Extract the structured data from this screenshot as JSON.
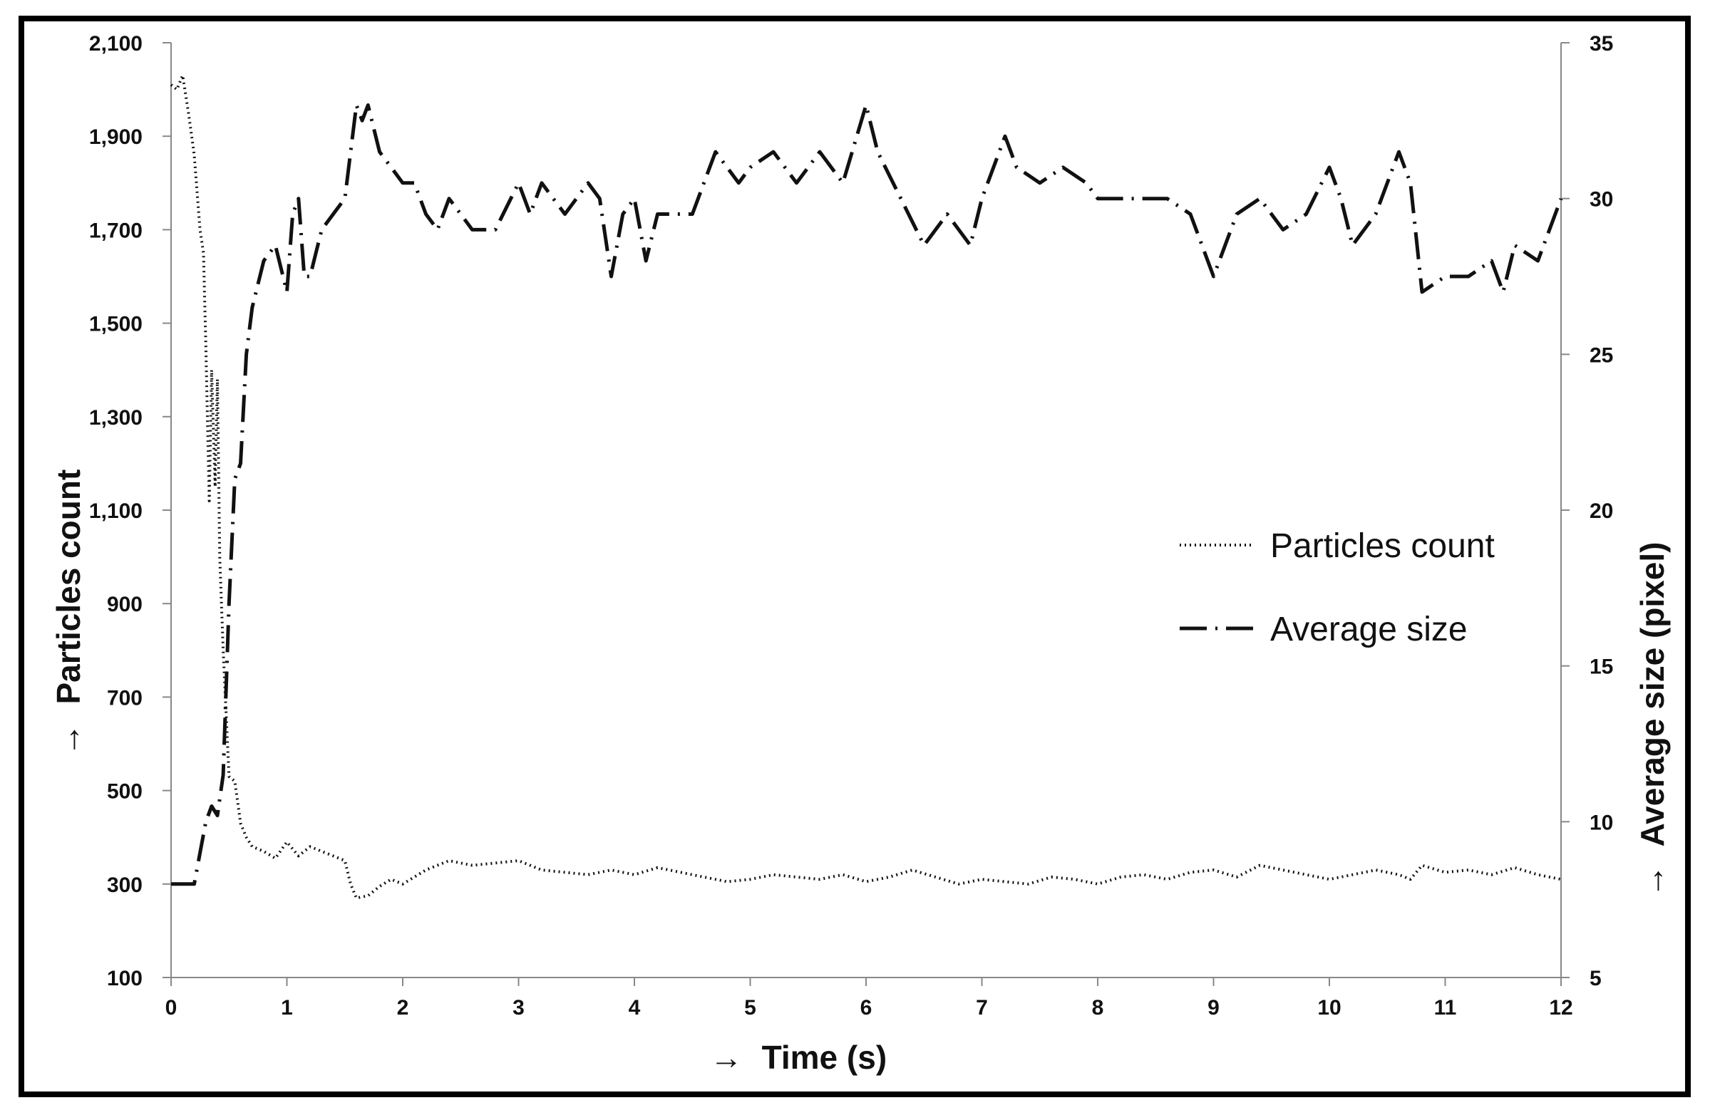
{
  "chart_data": {
    "type": "line",
    "x_axis": {
      "label": "Time (s)",
      "arrow": "→",
      "range": [
        0,
        12
      ],
      "ticks": [
        "0",
        "1",
        "2",
        "3",
        "4",
        "5",
        "6",
        "7",
        "8",
        "9",
        "10",
        "11",
        "12"
      ]
    },
    "y_axis_left": {
      "label": "Particles count",
      "arrow": "→",
      "range": [
        100,
        2100
      ],
      "ticks": [
        "100",
        "300",
        "500",
        "700",
        "900",
        "1,100",
        "1,300",
        "1,500",
        "1,700",
        "1,900",
        "2,100"
      ]
    },
    "y_axis_right": {
      "label": "Average size (pixel)",
      "arrow": "→",
      "range": [
        5,
        35
      ],
      "ticks": [
        "5",
        "10",
        "15",
        "20",
        "25",
        "30",
        "35"
      ]
    },
    "grid": false,
    "legend": {
      "placement": "right-middle",
      "entries": [
        {
          "name": "Particles count",
          "style": "dotted"
        },
        {
          "name": "Average size",
          "style": "long-dash-dot"
        }
      ]
    },
    "series": [
      {
        "name": "Particles count",
        "axis": "left",
        "style": "dotted",
        "x": [
          0,
          0.05,
          0.1,
          0.15,
          0.2,
          0.25,
          0.28,
          0.3,
          0.33,
          0.35,
          0.38,
          0.4,
          0.42,
          0.45,
          0.48,
          0.5,
          0.55,
          0.6,
          0.65,
          0.7,
          0.8,
          0.9,
          1.0,
          1.1,
          1.2,
          1.3,
          1.4,
          1.5,
          1.55,
          1.6,
          1.7,
          1.8,
          1.9,
          2.0,
          2.2,
          2.4,
          2.6,
          2.8,
          3.0,
          3.2,
          3.4,
          3.6,
          3.8,
          4.0,
          4.2,
          4.4,
          4.6,
          4.8,
          5.0,
          5.2,
          5.4,
          5.6,
          5.8,
          6.0,
          6.2,
          6.4,
          6.6,
          6.8,
          7.0,
          7.2,
          7.4,
          7.6,
          7.8,
          8.0,
          8.2,
          8.4,
          8.6,
          8.8,
          9.0,
          9.2,
          9.4,
          9.6,
          9.8,
          10.0,
          10.2,
          10.4,
          10.6,
          10.7,
          10.8,
          11.0,
          11.2,
          11.4,
          11.6,
          11.8,
          12.0
        ],
        "values": [
          2010,
          2000,
          2030,
          1950,
          1860,
          1700,
          1650,
          1450,
          1120,
          1400,
          1150,
          1380,
          1000,
          800,
          640,
          530,
          520,
          430,
          400,
          380,
          370,
          355,
          390,
          360,
          380,
          370,
          360,
          350,
          300,
          270,
          275,
          295,
          310,
          300,
          330,
          350,
          340,
          345,
          350,
          330,
          325,
          320,
          330,
          320,
          335,
          325,
          315,
          305,
          310,
          320,
          315,
          310,
          320,
          305,
          315,
          330,
          315,
          300,
          310,
          305,
          300,
          315,
          310,
          300,
          315,
          320,
          310,
          325,
          330,
          315,
          340,
          330,
          320,
          310,
          320,
          330,
          320,
          310,
          340,
          325,
          330,
          320,
          335,
          320,
          310
        ]
      },
      {
        "name": "Average size",
        "axis": "right",
        "style": "long-dash-dot",
        "x": [
          0,
          0.1,
          0.2,
          0.25,
          0.3,
          0.35,
          0.4,
          0.45,
          0.5,
          0.55,
          0.6,
          0.65,
          0.7,
          0.8,
          0.9,
          1.0,
          1.05,
          1.1,
          1.15,
          1.2,
          1.3,
          1.4,
          1.5,
          1.6,
          1.65,
          1.7,
          1.8,
          1.9,
          2.0,
          2.1,
          2.2,
          2.3,
          2.4,
          2.5,
          2.6,
          2.8,
          3.0,
          3.1,
          3.2,
          3.3,
          3.4,
          3.6,
          3.7,
          3.8,
          3.9,
          4.0,
          4.1,
          4.2,
          4.3,
          4.5,
          4.7,
          4.9,
          5.0,
          5.2,
          5.4,
          5.6,
          5.8,
          6.0,
          6.1,
          6.3,
          6.5,
          6.7,
          6.9,
          7.0,
          7.1,
          7.2,
          7.3,
          7.5,
          7.7,
          7.9,
          8.0,
          8.2,
          8.4,
          8.6,
          8.8,
          8.9,
          9.0,
          9.2,
          9.4,
          9.6,
          9.8,
          10.0,
          10.1,
          10.2,
          10.4,
          10.6,
          10.7,
          10.8,
          11.0,
          11.2,
          11.4,
          11.5,
          11.6,
          11.8,
          12.0
        ],
        "values": [
          8,
          8,
          8,
          9,
          10,
          10.5,
          10.2,
          11.5,
          17,
          21,
          21.5,
          25,
          26.5,
          28,
          28.5,
          27,
          29.5,
          30,
          27.5,
          27.5,
          29,
          29.5,
          30,
          33,
          32.5,
          33,
          31.5,
          31,
          30.5,
          30.5,
          29.5,
          29,
          30,
          29.5,
          29,
          29,
          30.5,
          29.5,
          30.5,
          30,
          29.5,
          30.5,
          30,
          27.5,
          29.5,
          30,
          28,
          29.5,
          29.5,
          29.5,
          31.5,
          30.5,
          31,
          31.5,
          30.5,
          31.5,
          30.5,
          33,
          31.5,
          30,
          28.5,
          29.5,
          28.5,
          30,
          31,
          32,
          31,
          30.5,
          31,
          30.5,
          30,
          30,
          30,
          30,
          29.5,
          28.5,
          27.5,
          29.5,
          30,
          29,
          29.5,
          31,
          30,
          28.5,
          29.5,
          31.5,
          30.5,
          27,
          27.5,
          27.5,
          28,
          27,
          28.5,
          28,
          30
        ]
      }
    ]
  }
}
